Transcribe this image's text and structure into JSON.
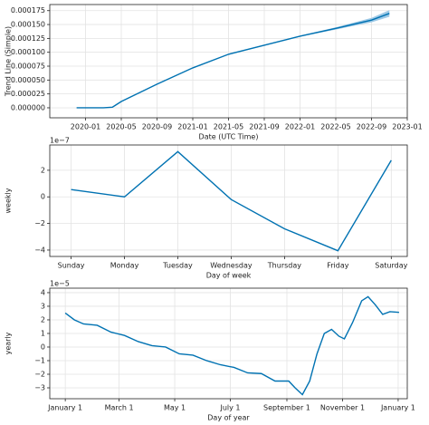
{
  "chart_data": [
    {
      "type": "line",
      "y_label": "Trend Line (Simple)",
      "x_label": "Date (UTC Time)",
      "color": "#0072b2",
      "band_color": "#9ec9e6",
      "grid": true,
      "x": [
        "2019-12",
        "2020-03",
        "2020-04",
        "2020-05",
        "2020-09",
        "2021-01",
        "2021-05",
        "2022-01",
        "2022-05",
        "2022-09",
        "2022-11"
      ],
      "values": [
        0,
        0,
        1e-06,
        1.14e-05,
        4.25e-05,
        7.19e-05,
        9.64e-05,
        0.000129,
        0.000143,
        0.000158,
        0.00017
      ],
      "lower": [
        0,
        0,
        1e-06,
        1.14e-05,
        4.25e-05,
        7.19e-05,
        9.64e-05,
        0.000128,
        0.000141,
        0.000154,
        0.000164
      ],
      "upper": [
        0,
        0,
        1e-06,
        1.14e-05,
        4.25e-05,
        7.19e-05,
        9.64e-05,
        0.00013,
        0.000145,
        0.000162,
        0.000176
      ],
      "xlim": [
        "2019-09",
        "2023-01"
      ],
      "xticks": [
        "2020-01",
        "2020-05",
        "2020-09",
        "2021-01",
        "2021-05",
        "2021-09",
        "2022-01",
        "2022-05",
        "2022-09",
        "2023-01"
      ],
      "ylim": [
        -1.8e-05,
        0.000186
      ],
      "yticks": [
        {
          "value": 0,
          "label": "0.000000"
        },
        {
          "value": 2.5e-05,
          "label": "0.000025"
        },
        {
          "value": 5e-05,
          "label": "0.000050"
        },
        {
          "value": 7.5e-05,
          "label": "0.000075"
        },
        {
          "value": 0.0001,
          "label": "0.000100"
        },
        {
          "value": 0.000125,
          "label": "0.000125"
        },
        {
          "value": 0.00015,
          "label": "0.000150"
        },
        {
          "value": 0.000175,
          "label": "0.000175"
        }
      ]
    },
    {
      "type": "line",
      "y_label": "weekly",
      "x_label": "Day of week",
      "offset_label": "1e−7",
      "color": "#0072b2",
      "grid": true,
      "categories": [
        "Sunday",
        "Monday",
        "Tuesday",
        "Wednesday",
        "Thursday",
        "Friday",
        "Saturday"
      ],
      "values": [
        0.55,
        0,
        3.4,
        -0.2,
        -2.4,
        -4.05,
        2.75
      ],
      "ylim": [
        -4.48,
        3.9
      ],
      "yticks": [
        {
          "value": -4,
          "label": "−4"
        },
        {
          "value": -2,
          "label": "−2"
        },
        0,
        2
      ]
    },
    {
      "type": "line",
      "y_label": "yearly",
      "x_label": "Day of year",
      "offset_label": "1e−5",
      "color": "#0072b2",
      "grid": true,
      "x": [
        0,
        10,
        20,
        35,
        50,
        65,
        80,
        95,
        110,
        125,
        140,
        155,
        170,
        185,
        200,
        215,
        230,
        245,
        252,
        260,
        268,
        276,
        284,
        292,
        300,
        306,
        315,
        325,
        332,
        340,
        348,
        356,
        366
      ],
      "values": [
        2.5,
        2.0,
        1.7,
        1.6,
        1.1,
        0.85,
        0.4,
        0.1,
        0.0,
        -0.5,
        -0.6,
        -1.0,
        -1.3,
        -1.5,
        -1.9,
        -1.95,
        -2.5,
        -2.5,
        -3.0,
        -3.5,
        -2.5,
        -0.5,
        1.0,
        1.3,
        0.8,
        0.6,
        1.8,
        3.4,
        3.7,
        3.1,
        2.4,
        2.6,
        2.55
      ],
      "xlim": [
        -17,
        375
      ],
      "xticks": [
        {
          "value": 0,
          "label": "January 1"
        },
        {
          "value": 59,
          "label": "March 1"
        },
        {
          "value": 120,
          "label": "May 1"
        },
        {
          "value": 181,
          "label": "July 1"
        },
        {
          "value": 243,
          "label": "September 1"
        },
        {
          "value": 304,
          "label": "November 1"
        },
        {
          "value": 365,
          "label": "January 1"
        }
      ],
      "ylim": [
        -3.8,
        4.33
      ],
      "yticks": [
        {
          "value": -3,
          "label": "−3"
        },
        {
          "value": -2,
          "label": "−2"
        },
        {
          "value": -1,
          "label": "−1"
        },
        0,
        1,
        2,
        3,
        4
      ]
    }
  ]
}
